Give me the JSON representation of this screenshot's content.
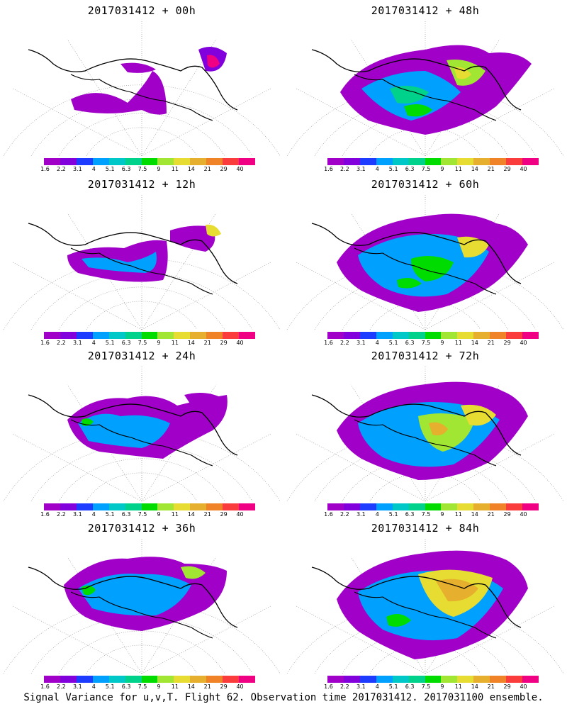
{
  "panels": [
    {
      "title": "2017031412 + 00h",
      "key": "00h"
    },
    {
      "title": "2017031412 + 48h",
      "key": "48h"
    },
    {
      "title": "2017031412 + 12h",
      "key": "12h"
    },
    {
      "title": "2017031412 + 60h",
      "key": "60h"
    },
    {
      "title": "2017031412 + 24h",
      "key": "24h"
    },
    {
      "title": "2017031412 + 72h",
      "key": "72h"
    },
    {
      "title": "2017031412 + 36h",
      "key": "36h"
    },
    {
      "title": "2017031412 + 84h",
      "key": "84h"
    }
  ],
  "colorbar": {
    "labels": [
      "1.6",
      "2.2",
      "3.1",
      "4",
      "5.1",
      "6.3",
      "7.5",
      "9",
      "11",
      "14",
      "21",
      "29",
      "40"
    ],
    "colors": [
      "#a000c8",
      "#8200dc",
      "#1e3cff",
      "#00a0ff",
      "#00c8c8",
      "#00d28c",
      "#00dc00",
      "#a0e632",
      "#e6dc32",
      "#e6af2d",
      "#f08228",
      "#fa3c3c",
      "#f00082"
    ]
  },
  "footer": "Signal Variance for u,v,T. Flight 62. Observation time 2017031412. 2017031100 ensemble."
}
